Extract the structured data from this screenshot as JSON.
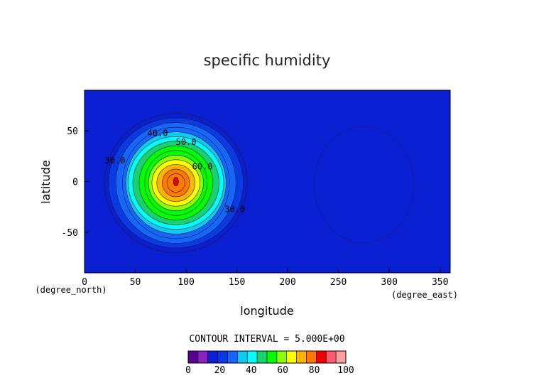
{
  "chart_data": {
    "type": "heatmap",
    "title": "specific humidity",
    "xlabel": "longitude",
    "ylabel": "latitude",
    "x_unit": "(degree_east)",
    "y_unit": "(degree_north)",
    "xlim": [
      0,
      360
    ],
    "ylim": [
      -90,
      90
    ],
    "x_ticks": [
      0,
      50,
      100,
      150,
      200,
      250,
      300,
      350
    ],
    "y_ticks": [
      50,
      0,
      -50
    ],
    "contour_interval_text": "CONTOUR INTERVAL = 5.000E+00",
    "contour_interval": 5,
    "field_center": {
      "lon": 90,
      "lat": 0,
      "peak": 90
    },
    "background_value": 12,
    "contour_labels": [
      {
        "text": "40.0",
        "lon": 72,
        "lat": 45
      },
      {
        "text": "50.0",
        "lon": 100,
        "lat": 36
      },
      {
        "text": "60.0",
        "lon": 116,
        "lat": 12
      },
      {
        "text": "30.0",
        "lon": 30,
        "lat": 18
      },
      {
        "text": "30.0",
        "lon": 148,
        "lat": -30
      }
    ],
    "colorbar": {
      "min": 0,
      "max": 100,
      "tick_labels": [
        "0",
        "20",
        "40",
        "60",
        "80",
        "100"
      ],
      "colors": [
        "#5a0090",
        "#8a22c0",
        "#0a1ed2",
        "#0a3ae6",
        "#1565ff",
        "#12c8f0",
        "#00ffff",
        "#18d270",
        "#00ff00",
        "#8cff00",
        "#ffff00",
        "#ffb400",
        "#ff7800",
        "#f00000",
        "#ff5a70",
        "#ffa0a0"
      ]
    }
  }
}
